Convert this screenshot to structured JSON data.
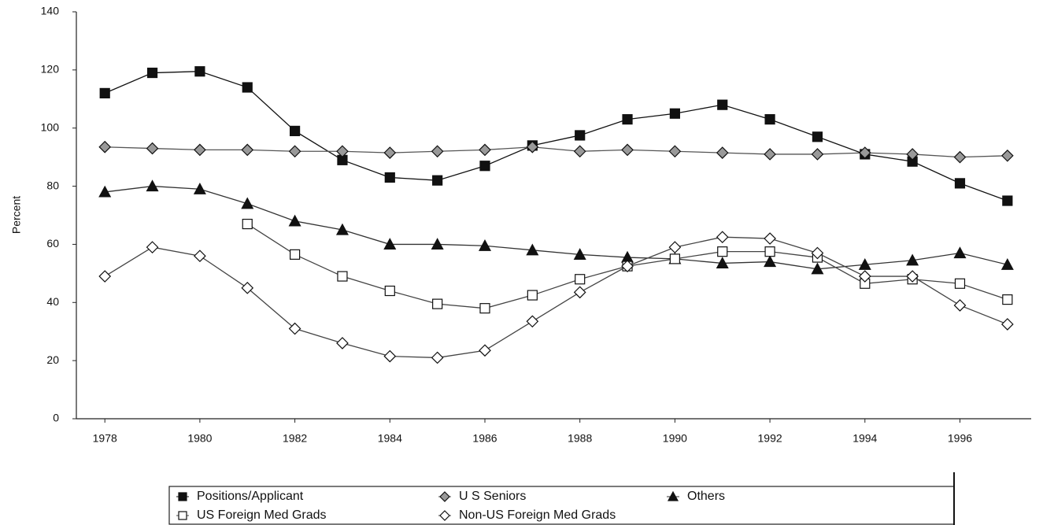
{
  "chart_data": {
    "type": "line",
    "y_label": "Percent",
    "x": [
      1978,
      1979,
      1980,
      1981,
      1982,
      1983,
      1984,
      1985,
      1986,
      1987,
      1988,
      1989,
      1990,
      1991,
      1992,
      1993,
      1994,
      1995,
      1996,
      1997
    ],
    "xlim": [
      1977.4,
      1997.5
    ],
    "xticks": [
      1978,
      1980,
      1982,
      1984,
      1986,
      1988,
      1990,
      1992,
      1994,
      1996
    ],
    "ylim": [
      0,
      140
    ],
    "yticks": [
      0,
      20,
      40,
      60,
      80,
      100,
      120,
      140
    ],
    "grid": false,
    "legend": "bottom",
    "series": [
      {
        "name": "Positions/Applicant",
        "color": "#111111",
        "marker": "square",
        "marker_fill": "#111111",
        "values": [
          112,
          119,
          119.5,
          114,
          99,
          89,
          83,
          82,
          87,
          94,
          97.5,
          103,
          105,
          108,
          103,
          97,
          91,
          88.5,
          81,
          75
        ]
      },
      {
        "name": "U S Seniors",
        "color": "#555555",
        "marker": "diamond",
        "marker_fill": "#999999",
        "values": [
          93.5,
          93,
          92.5,
          92.5,
          92,
          92,
          91.5,
          92,
          92.5,
          93.5,
          92,
          92.5,
          92,
          91.5,
          91,
          91,
          91.5,
          91,
          90,
          90.5
        ]
      },
      {
        "name": "Others",
        "color": "#333333",
        "marker": "triangle",
        "marker_fill": "#111111",
        "values": [
          78,
          80,
          79,
          74,
          68,
          65,
          60,
          60,
          59.5,
          58,
          56.5,
          55.5,
          55,
          53.5,
          54,
          51.5,
          53,
          54.5,
          57,
          53
        ]
      },
      {
        "name": "US Foreign Med Grads",
        "color": "#444444",
        "marker": "square",
        "marker_fill": "#ffffff",
        "values": [
          null,
          null,
          null,
          67,
          56.5,
          49,
          44,
          39.5,
          38,
          42.5,
          48,
          52.5,
          55,
          57.5,
          57.5,
          55.5,
          46.5,
          48,
          46.5,
          41
        ]
      },
      {
        "name": "Non-US Foreign Med Grads",
        "color": "#444444",
        "marker": "diamond",
        "marker_fill": "#ffffff",
        "values": [
          49,
          59,
          56,
          45,
          31,
          26,
          21.5,
          21,
          23.5,
          33.5,
          43.5,
          52.5,
          59,
          62.5,
          62,
          57,
          49,
          49,
          39,
          32.5
        ]
      }
    ]
  }
}
